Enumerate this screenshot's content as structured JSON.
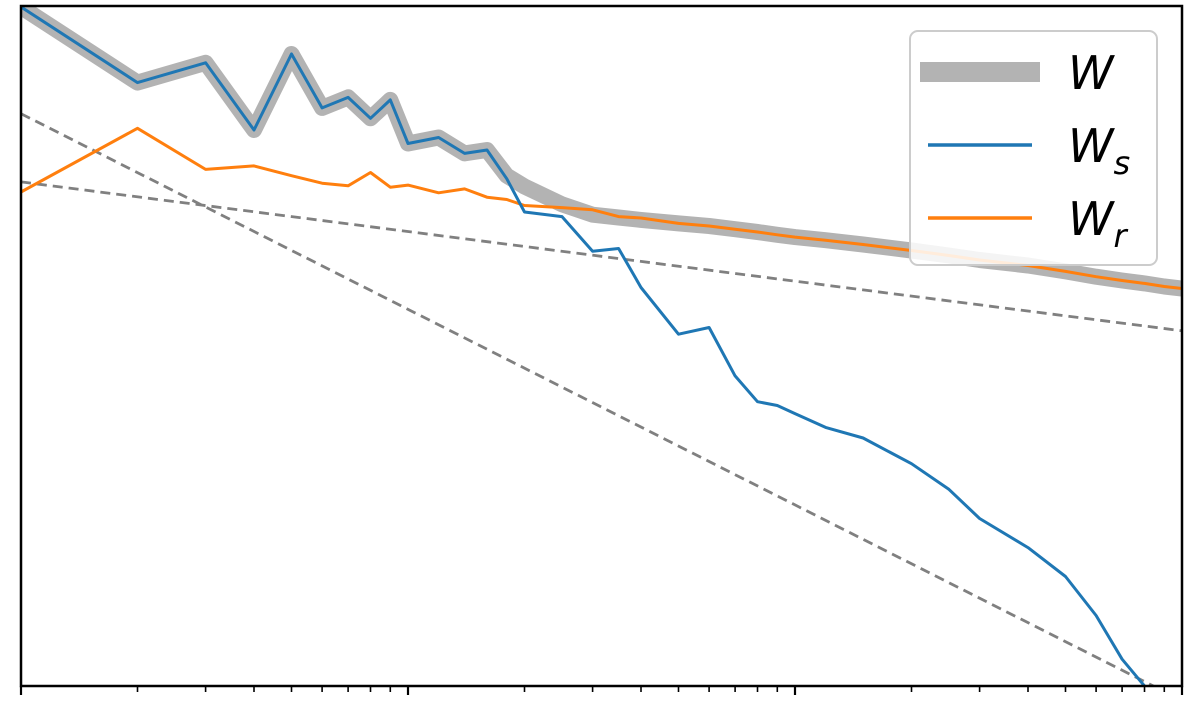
{
  "chart_data": {
    "type": "line",
    "title": "",
    "xlabel": "",
    "ylabel": "",
    "xscale": "log",
    "yscale": "log",
    "xlim": [
      1,
      1000
    ],
    "ylim": [
      0.001,
      2.0
    ],
    "grid": false,
    "legend_position": "top-right",
    "x_tick_labels_visible": false,
    "y_tick_labels_visible": false,
    "colors": {
      "W": "#b3b3b3",
      "W_s": "#1f77b4",
      "W_r": "#ff7f0e",
      "reference": "#808080"
    },
    "series": [
      {
        "name": "W",
        "x": [
          1,
          2,
          3,
          4,
          5,
          6,
          7,
          8,
          9,
          10,
          12,
          14,
          16,
          18,
          20,
          25,
          30,
          35,
          40,
          50,
          60,
          70,
          80,
          90,
          100,
          120,
          150,
          200,
          250,
          300,
          400,
          500,
          600,
          700,
          800,
          900,
          1000
        ],
        "y": [
          1.98,
          0.85,
          1.06,
          0.5,
          1.17,
          0.64,
          0.72,
          0.57,
          0.7,
          0.43,
          0.46,
          0.385,
          0.4,
          0.3,
          0.266,
          0.218,
          0.194,
          0.188,
          0.183,
          0.176,
          0.171,
          0.165,
          0.16,
          0.155,
          0.151,
          0.146,
          0.139,
          0.13,
          0.123,
          0.117,
          0.11,
          0.103,
          0.097,
          0.093,
          0.09,
          0.087,
          0.085
        ]
      },
      {
        "name": "W_s",
        "x": [
          1,
          2,
          3,
          4,
          5,
          6,
          7,
          8,
          9,
          10,
          12,
          14,
          16,
          18,
          20,
          25,
          30,
          35,
          40,
          50,
          60,
          70,
          80,
          90,
          100,
          120,
          150,
          200,
          250,
          300,
          400,
          500,
          600,
          700,
          800
        ],
        "y": [
          1.98,
          0.85,
          1.06,
          0.5,
          1.17,
          0.64,
          0.72,
          0.57,
          0.7,
          0.43,
          0.46,
          0.385,
          0.4,
          0.29,
          0.2,
          0.19,
          0.129,
          0.133,
          0.086,
          0.051,
          0.055,
          0.032,
          0.024,
          0.023,
          0.021,
          0.018,
          0.016,
          0.012,
          0.009,
          0.0065,
          0.0047,
          0.0034,
          0.0022,
          0.00135,
          0.001
        ]
      },
      {
        "name": "W_r",
        "x": [
          1,
          2,
          3,
          4,
          5,
          6,
          7,
          8,
          9,
          10,
          12,
          14,
          16,
          18,
          20,
          25,
          30,
          35,
          40,
          50,
          60,
          70,
          80,
          90,
          100,
          120,
          150,
          200,
          250,
          300,
          400,
          500,
          600,
          700,
          800,
          900,
          1000
        ],
        "y": [
          0.25,
          0.51,
          0.322,
          0.335,
          0.3,
          0.276,
          0.268,
          0.311,
          0.264,
          0.27,
          0.248,
          0.259,
          0.236,
          0.23,
          0.215,
          0.21,
          0.205,
          0.19,
          0.187,
          0.176,
          0.171,
          0.165,
          0.16,
          0.155,
          0.151,
          0.146,
          0.139,
          0.13,
          0.123,
          0.117,
          0.11,
          0.103,
          0.097,
          0.093,
          0.09,
          0.087,
          0.085
        ]
      },
      {
        "name": "",
        "role": "reference",
        "x": [
          1,
          1000
        ],
        "y": [
          0.6,
          0.00085
        ]
      },
      {
        "name": "",
        "role": "reference",
        "x": [
          1,
          1000
        ],
        "y": [
          0.28,
          0.053
        ]
      }
    ],
    "legend": [
      {
        "key": "W",
        "label": "W",
        "sub": ""
      },
      {
        "key": "W_s",
        "label": "W",
        "sub": "s"
      },
      {
        "key": "W_r",
        "label": "W",
        "sub": "r"
      }
    ]
  }
}
